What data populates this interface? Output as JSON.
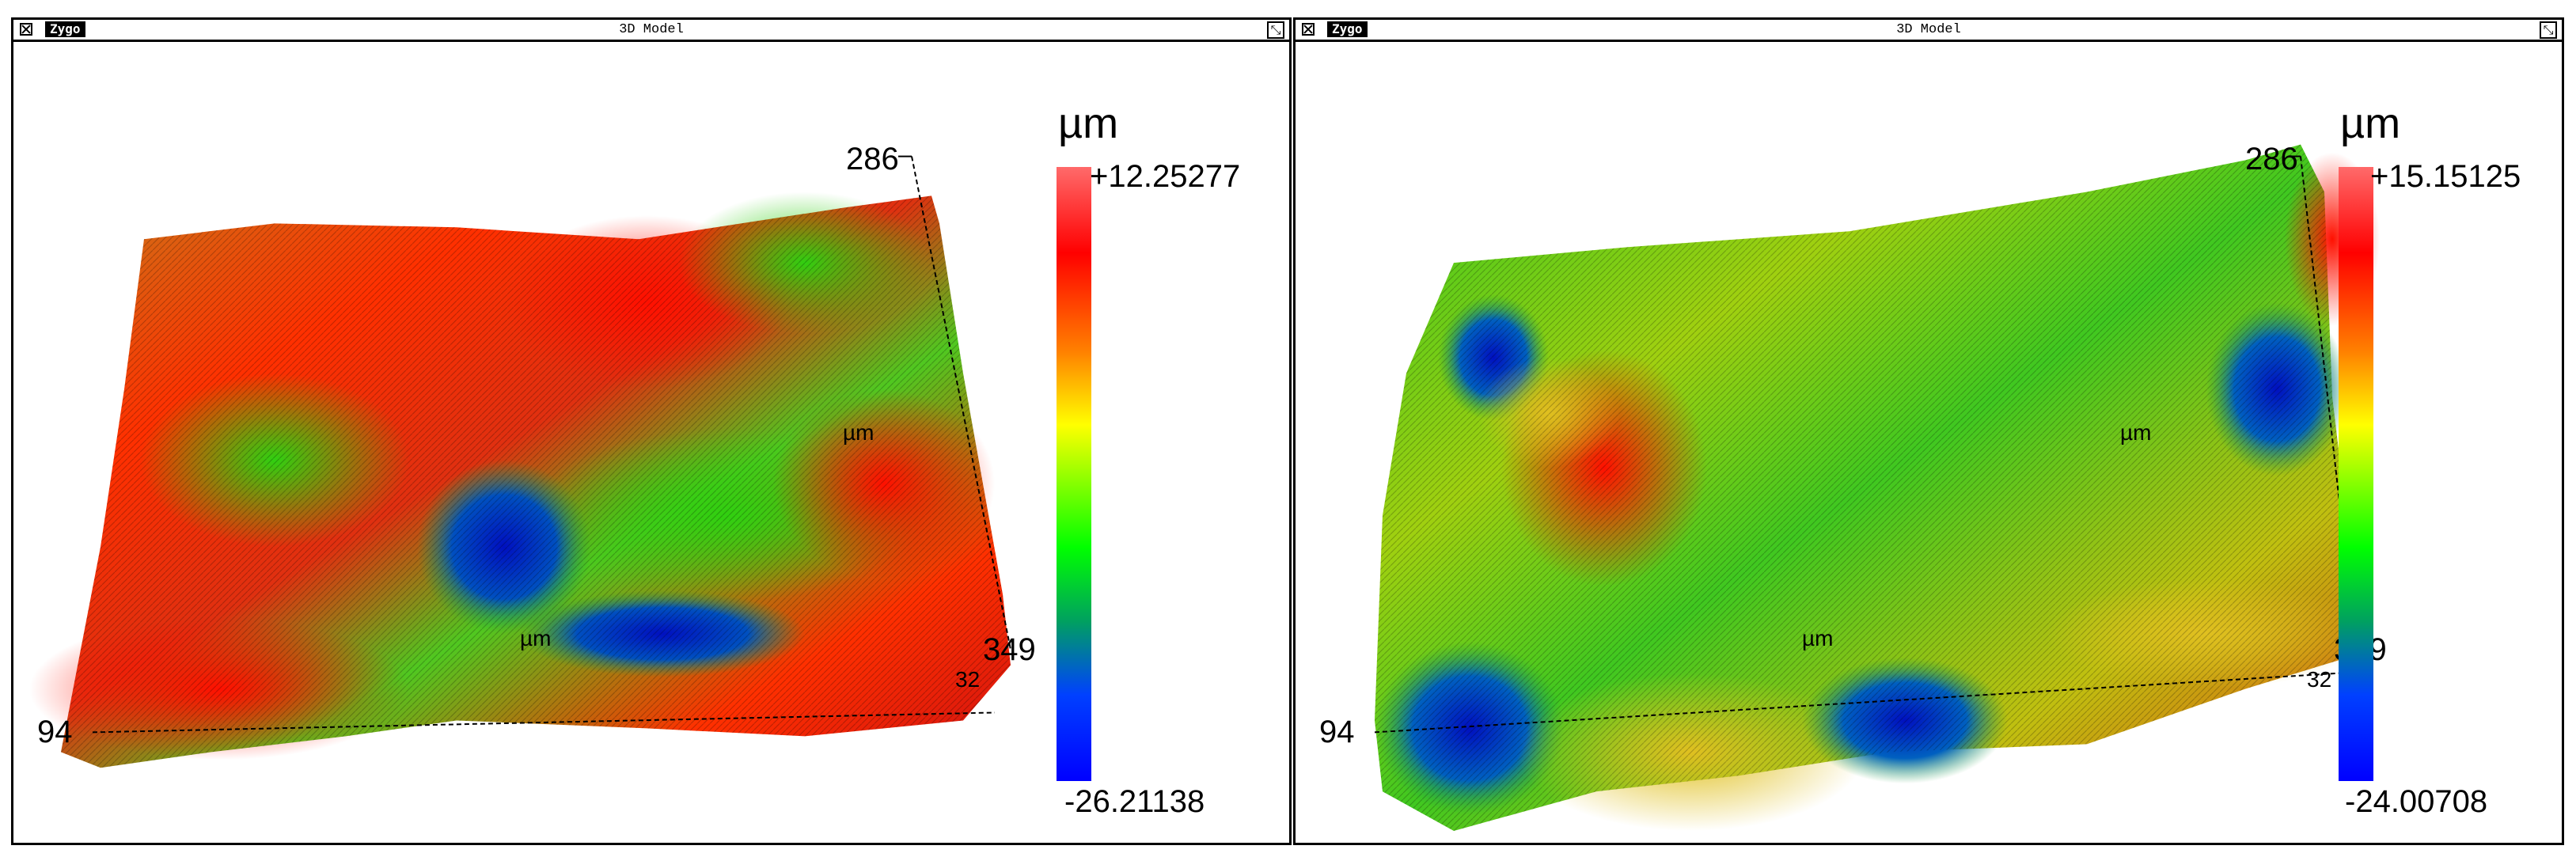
{
  "windows": [
    {
      "brand": "Zygo",
      "title": "3D Model",
      "colorbar": {
        "unit": "µm",
        "max_label": "+12.25277",
        "min_label": "-26.21138"
      },
      "axis_labels": {
        "y_far": "286",
        "y_near": "94",
        "x_right": "349",
        "x_right_small": "32"
      },
      "surface_units": [
        "µm",
        "µm"
      ],
      "surface_colors": {
        "dominant": "#ff2000",
        "secondary": "#40d000",
        "accent": "#0000ff"
      }
    },
    {
      "brand": "Zygo",
      "title": "3D Model",
      "colorbar": {
        "unit": "µm",
        "max_label": "+15.15125",
        "min_label": "-24.00708"
      },
      "axis_labels": {
        "y_far": "286",
        "y_near": "94",
        "x_right": "349",
        "x_right_small": "32"
      },
      "surface_units": [
        "µm",
        "µm"
      ],
      "surface_colors": {
        "dominant": "#40d000",
        "secondary": "#ff2000",
        "accent": "#0000ff"
      }
    }
  ]
}
